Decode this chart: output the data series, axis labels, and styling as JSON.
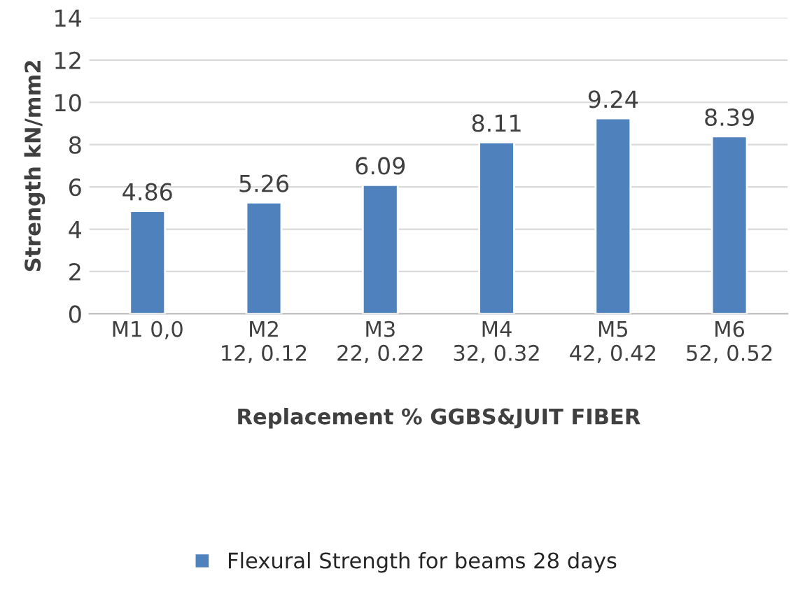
{
  "chart_data": {
    "type": "bar",
    "categories": [
      "M1 0,0",
      "M2\n12, 0.12",
      "M3\n22, 0.22",
      "M4\n32, 0.32",
      "M5\n42, 0.42",
      "M6\n52, 0.52"
    ],
    "series": [
      {
        "name": "Flexural Strength for beams 28 days",
        "color": "#4f81bd",
        "values": [
          4.86,
          5.26,
          6.09,
          8.11,
          9.24,
          8.39
        ]
      }
    ],
    "xlabel": "Replacement % GGBS&JUIT FIBER",
    "ylabel": "Strength kN/mm2",
    "ylim": [
      0,
      14
    ],
    "yticks": [
      0,
      2,
      4,
      6,
      8,
      10,
      12,
      14
    ],
    "grid": "y",
    "legend": "bottom",
    "data_labels": true
  }
}
